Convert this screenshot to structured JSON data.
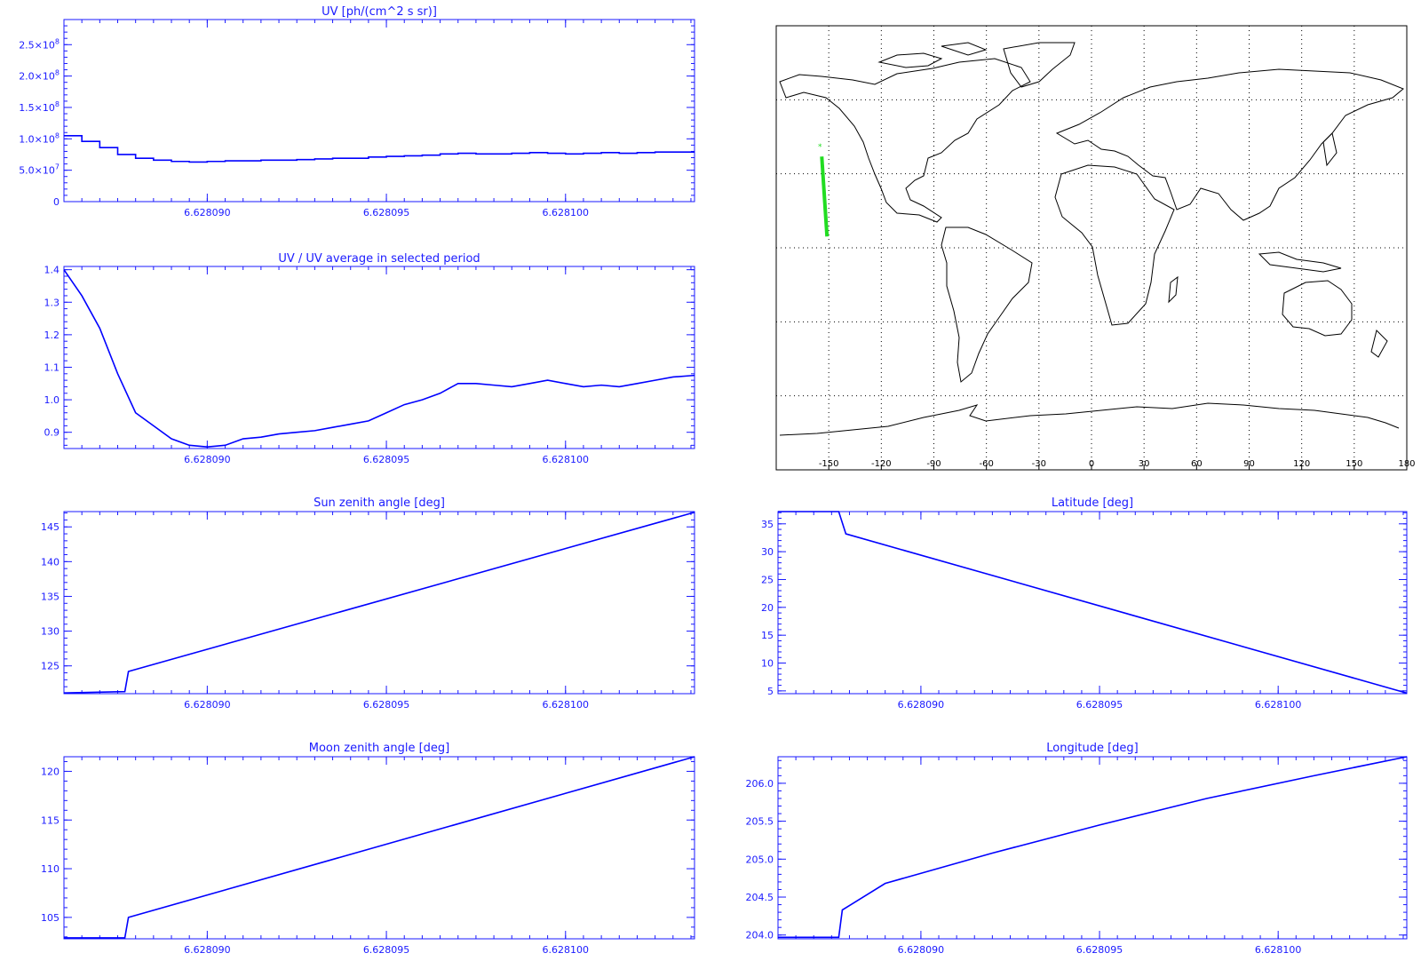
{
  "chart_data": [
    {
      "id": "uv",
      "type": "line",
      "title": "UV [ph/(cm^2 s sr)]",
      "xlim": [
        6.628086,
        6.6281036
      ],
      "xticks": [
        6.62809,
        6.628095,
        6.6281
      ],
      "xtick_labels": [
        "6.628090",
        "6.628095",
        "6.628100"
      ],
      "ylim": [
        0,
        290000000.0
      ],
      "yticks": [
        0,
        50000000.0,
        100000000.0,
        150000000.0,
        200000000.0,
        250000000.0
      ],
      "ytick_labels": [
        [
          "0",
          ""
        ],
        [
          "5.0×10",
          "7"
        ],
        [
          "1.0×10",
          "8"
        ],
        [
          "1.5×10",
          "8"
        ],
        [
          "2.0×10",
          "8"
        ],
        [
          "2.5×10",
          "8"
        ]
      ],
      "step": true,
      "x": [
        6.628086,
        6.6280865,
        6.628087,
        6.6280875,
        6.628088,
        6.6280885,
        6.628089,
        6.6280895,
        6.62809,
        6.6280905,
        6.628091,
        6.6280915,
        6.628092,
        6.6280925,
        6.628093,
        6.6280935,
        6.628094,
        6.6280945,
        6.628095,
        6.6280955,
        6.628096,
        6.6280965,
        6.628097,
        6.6280975,
        6.628098,
        6.6280985,
        6.628099,
        6.6280995,
        6.6281,
        6.6281005,
        6.628101,
        6.6281015,
        6.628102,
        6.6281025,
        6.628103,
        6.6281036
      ],
      "y": [
        105000000.0,
        96000000.0,
        86000000.0,
        75000000.0,
        69000000.0,
        66000000.0,
        64000000.0,
        63000000.0,
        64000000.0,
        65000000.0,
        65000000.0,
        66000000.0,
        66000000.0,
        67000000.0,
        68000000.0,
        69000000.0,
        69000000.0,
        71000000.0,
        72000000.0,
        73000000.0,
        74000000.0,
        76000000.0,
        77000000.0,
        76000000.0,
        76000000.0,
        77000000.0,
        78000000.0,
        77000000.0,
        76000000.0,
        77000000.0,
        78000000.0,
        77000000.0,
        78000000.0,
        79000000.0,
        79000000.0,
        79000000.0
      ]
    },
    {
      "id": "uv-ratio",
      "type": "line",
      "title": "UV / UV average in selected period",
      "xlim": [
        6.628086,
        6.6281036
      ],
      "xticks": [
        6.62809,
        6.628095,
        6.6281
      ],
      "xtick_labels": [
        "6.628090",
        "6.628095",
        "6.628100"
      ],
      "ylim": [
        0.85,
        1.41
      ],
      "yticks": [
        0.9,
        1.0,
        1.1,
        1.2,
        1.3,
        1.4
      ],
      "ytick_labels": [
        [
          "0.9",
          ""
        ],
        [
          "1.0",
          ""
        ],
        [
          "1.1",
          ""
        ],
        [
          "1.2",
          ""
        ],
        [
          "1.3",
          ""
        ],
        [
          "1.4",
          ""
        ]
      ],
      "x": [
        6.628086,
        6.6280865,
        6.628087,
        6.6280875,
        6.628088,
        6.6280885,
        6.628089,
        6.6280895,
        6.62809,
        6.6280905,
        6.628091,
        6.6280915,
        6.628092,
        6.6280925,
        6.628093,
        6.6280935,
        6.628094,
        6.6280945,
        6.628095,
        6.6280955,
        6.628096,
        6.6280965,
        6.628097,
        6.6280975,
        6.628098,
        6.6280985,
        6.628099,
        6.6280995,
        6.6281,
        6.6281005,
        6.628101,
        6.6281015,
        6.628102,
        6.6281025,
        6.628103,
        6.6281036
      ],
      "y": [
        1.4,
        1.32,
        1.22,
        1.08,
        0.96,
        0.92,
        0.88,
        0.86,
        0.855,
        0.86,
        0.88,
        0.885,
        0.895,
        0.9,
        0.905,
        0.915,
        0.925,
        0.935,
        0.96,
        0.985,
        1.0,
        1.02,
        1.05,
        1.05,
        1.045,
        1.04,
        1.05,
        1.06,
        1.05,
        1.04,
        1.045,
        1.04,
        1.05,
        1.06,
        1.07,
        1.075
      ]
    },
    {
      "id": "sun-zenith",
      "type": "line",
      "title": "Sun zenith angle [deg]",
      "xlim": [
        6.628086,
        6.6281036
      ],
      "xticks": [
        6.62809,
        6.628095,
        6.6281
      ],
      "xtick_labels": [
        "6.628090",
        "6.628095",
        "6.628100"
      ],
      "ylim": [
        121,
        147.2
      ],
      "yticks": [
        125,
        130,
        135,
        140,
        145
      ],
      "ytick_labels": [
        [
          "125",
          ""
        ],
        [
          "130",
          ""
        ],
        [
          "135",
          ""
        ],
        [
          "140",
          ""
        ],
        [
          "145",
          ""
        ]
      ],
      "x": [
        6.628086,
        6.6280877,
        6.6280878,
        6.6281036
      ],
      "y": [
        121.1,
        121.3,
        124.2,
        147.1
      ]
    },
    {
      "id": "latitude",
      "type": "line",
      "title": "Latitude [deg]",
      "xlim": [
        6.628086,
        6.6281036
      ],
      "xticks": [
        6.62809,
        6.628095,
        6.6281
      ],
      "xtick_labels": [
        "6.628090",
        "6.628095",
        "6.628100"
      ],
      "ylim": [
        4.5,
        37.2
      ],
      "yticks": [
        5,
        10,
        15,
        20,
        25,
        30,
        35
      ],
      "ytick_labels": [
        [
          "5",
          ""
        ],
        [
          "10",
          ""
        ],
        [
          "15",
          ""
        ],
        [
          "20",
          ""
        ],
        [
          "25",
          ""
        ],
        [
          "30",
          ""
        ],
        [
          "35",
          ""
        ]
      ],
      "x": [
        6.628086,
        6.6280877,
        6.6280879,
        6.6281036
      ],
      "y": [
        37.2,
        37.2,
        33.2,
        4.6
      ]
    },
    {
      "id": "moon-zenith",
      "type": "line",
      "title": "Moon zenith angle [deg]",
      "xlim": [
        6.628086,
        6.6281036
      ],
      "xticks": [
        6.62809,
        6.628095,
        6.6281
      ],
      "xtick_labels": [
        "6.628090",
        "6.628095",
        "6.628100"
      ],
      "ylim": [
        102.8,
        121.5
      ],
      "yticks": [
        105,
        110,
        115,
        120
      ],
      "ytick_labels": [
        [
          "105",
          ""
        ],
        [
          "110",
          ""
        ],
        [
          "115",
          ""
        ],
        [
          "120",
          ""
        ]
      ],
      "x": [
        6.628086,
        6.6280877,
        6.6280878,
        6.6281036
      ],
      "y": [
        102.9,
        102.9,
        105.0,
        121.5
      ]
    },
    {
      "id": "longitude",
      "type": "line",
      "title": "Longitude [deg]",
      "xlim": [
        6.628086,
        6.6281036
      ],
      "xticks": [
        6.62809,
        6.628095,
        6.6281
      ],
      "xtick_labels": [
        "6.628090",
        "6.628095",
        "6.628100"
      ],
      "ylim": [
        203.95,
        206.35
      ],
      "yticks": [
        204.0,
        204.5,
        205.0,
        205.5,
        206.0
      ],
      "ytick_labels": [
        [
          "204.0",
          ""
        ],
        [
          "204.5",
          ""
        ],
        [
          "205.0",
          ""
        ],
        [
          "205.5",
          ""
        ],
        [
          "206.0",
          ""
        ]
      ],
      "x": [
        6.628086,
        6.6280877,
        6.6280878,
        6.628089,
        6.628092,
        6.628095,
        6.628098,
        6.628101,
        6.6281036
      ],
      "y": [
        203.97,
        203.97,
        204.33,
        204.68,
        205.08,
        205.45,
        205.8,
        206.1,
        206.35
      ]
    }
  ],
  "map": {
    "xtick_labels": [
      "-150",
      "-120",
      "-90",
      "-60",
      "-30",
      "0",
      "30",
      "60",
      "90",
      "120",
      "150",
      "180"
    ],
    "xticks_lon": [
      -150,
      -120,
      -90,
      -60,
      -30,
      0,
      30,
      60,
      90,
      120,
      150,
      180
    ],
    "grid_lats": [
      60,
      30,
      0,
      -30,
      -60
    ],
    "track_color": "#22dd22",
    "track": {
      "lon": [
        -154,
        -151
      ],
      "lat": [
        37,
        4.6
      ]
    },
    "marker": {
      "lon": -155,
      "lat": 40
    }
  },
  "colors": {
    "line": "#0000ff",
    "axis": "#1a1aff",
    "map_land": "#000000"
  }
}
